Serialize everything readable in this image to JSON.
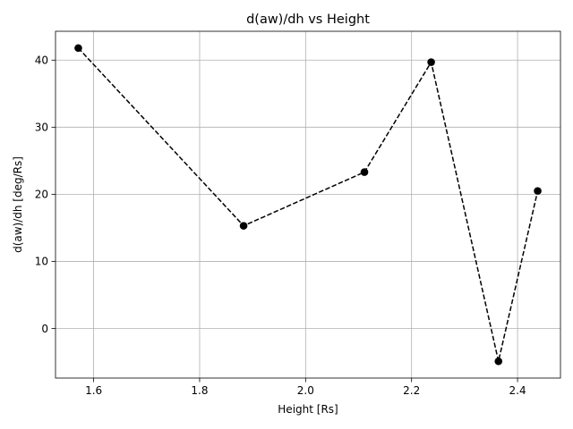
{
  "chart_data": {
    "type": "line",
    "title": "d(aw)/dh vs Height",
    "xlabel": "Height [Rs]",
    "ylabel": "d(aw)/dh [deg/Rs]",
    "xlim": [
      1.528,
      2.481
    ],
    "ylim": [
      -7.4,
      44.3
    ],
    "x_ticks": [
      1.6,
      1.8,
      2.0,
      2.2,
      2.4
    ],
    "x_tick_labels": [
      "1.6",
      "1.8",
      "2.0",
      "2.2",
      "2.4"
    ],
    "y_ticks": [
      0,
      10,
      20,
      30,
      40
    ],
    "y_tick_labels": [
      "0",
      "10",
      "20",
      "30",
      "40"
    ],
    "grid": true,
    "legend": "none",
    "series": [
      {
        "line_style": "dashed",
        "marker": "circle",
        "color": "#000000",
        "x": [
          1.571,
          1.883,
          2.111,
          2.237,
          2.364,
          2.438
        ],
        "y": [
          41.8,
          15.3,
          23.3,
          39.7,
          -4.9,
          20.5
        ]
      }
    ]
  }
}
